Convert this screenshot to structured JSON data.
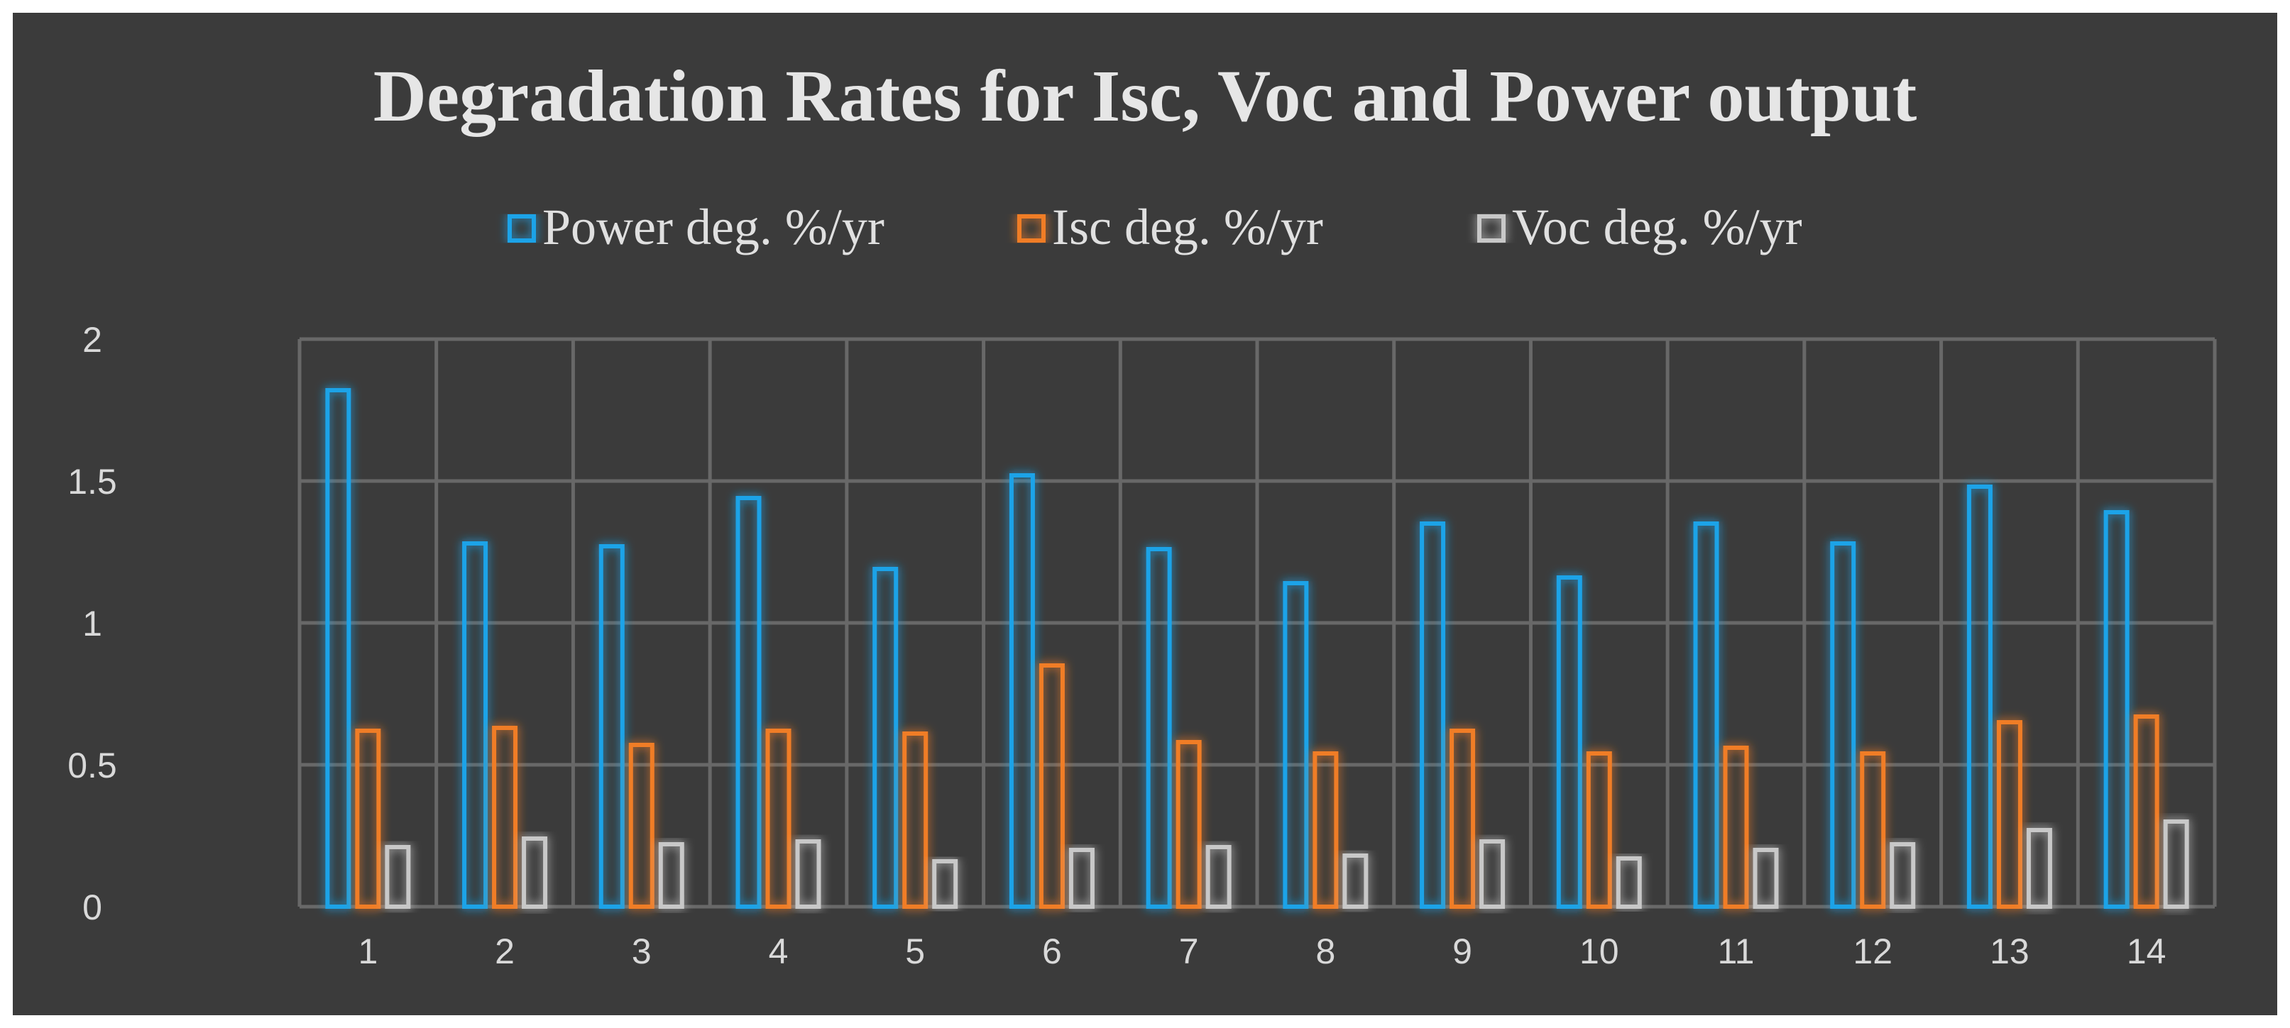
{
  "chart_data": {
    "type": "bar",
    "title": "Degradation Rates for Isc, Voc and Power output",
    "xlabel": "",
    "ylabel": "",
    "categories": [
      "1",
      "2",
      "3",
      "4",
      "5",
      "6",
      "7",
      "8",
      "9",
      "10",
      "11",
      "12",
      "13",
      "14"
    ],
    "series": [
      {
        "name": "Power deg. %/yr",
        "color": "#1aa3e8",
        "values": [
          1.82,
          1.28,
          1.27,
          1.44,
          1.19,
          1.52,
          1.26,
          1.14,
          1.35,
          1.16,
          1.35,
          1.28,
          1.48,
          1.39
        ]
      },
      {
        "name": "Isc deg. %/yr",
        "color": "#f07d28",
        "values": [
          0.62,
          0.63,
          0.57,
          0.62,
          0.61,
          0.85,
          0.58,
          0.54,
          0.62,
          0.54,
          0.56,
          0.54,
          0.65,
          0.67
        ]
      },
      {
        "name": "Voc deg. %/yr",
        "color": "#c8c8c8",
        "values": [
          0.21,
          0.24,
          0.22,
          0.23,
          0.16,
          0.2,
          0.21,
          0.18,
          0.23,
          0.17,
          0.2,
          0.22,
          0.27,
          0.3
        ]
      }
    ],
    "ylim": [
      0,
      2
    ],
    "yticks": [
      "0",
      "0.5",
      "1",
      "1.5",
      "2"
    ],
    "grid": true,
    "legend_position": "top",
    "background": "#3b3b3b"
  }
}
